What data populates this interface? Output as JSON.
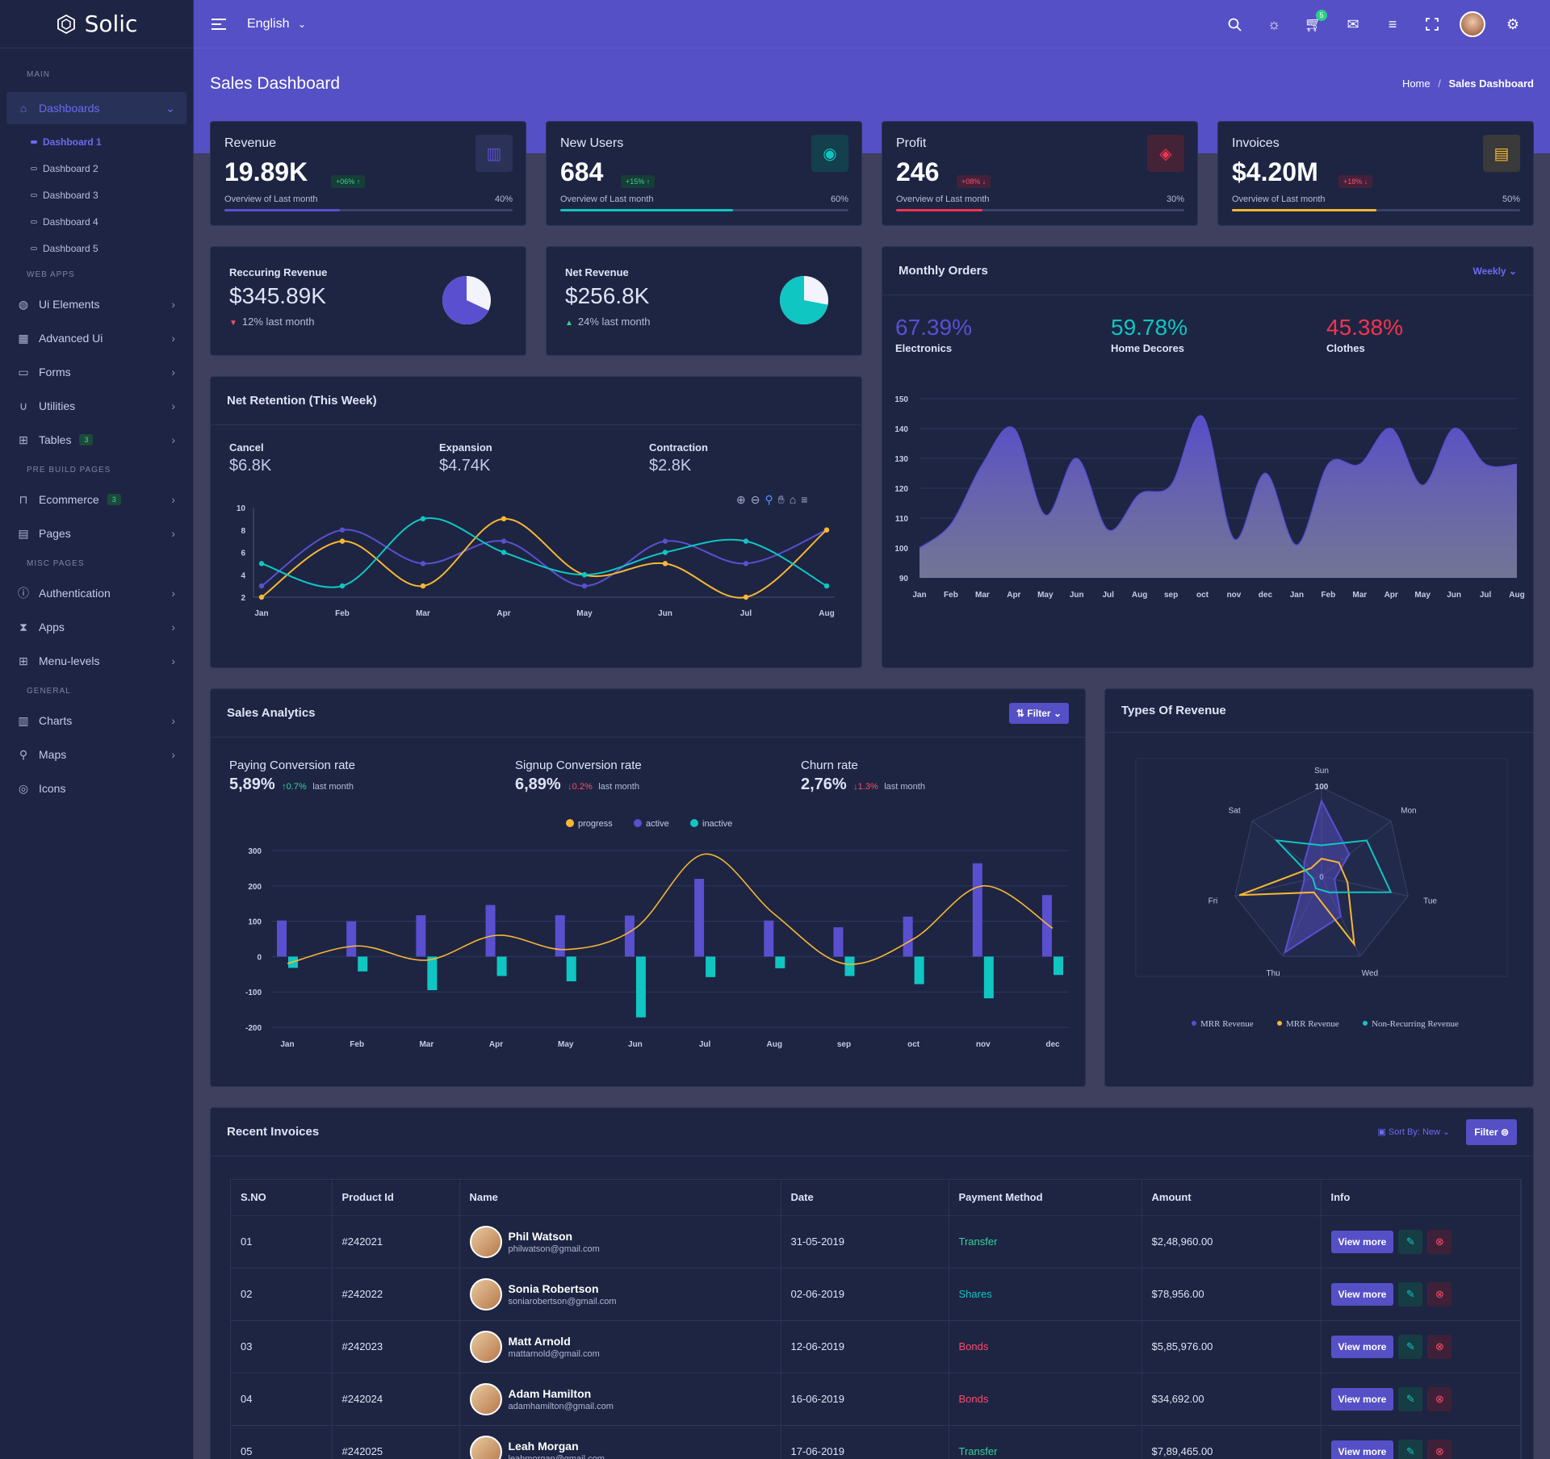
{
  "app": {
    "name": "Solic"
  },
  "sidebar": {
    "sections": {
      "main": "MAIN",
      "web_apps": "WEB APPS",
      "pre_build": "PRE BUILD PAGES",
      "misc": "MISC PAGES",
      "general": "GENERAL"
    },
    "dashboards": {
      "label": "Dashboards",
      "subs": [
        "Dashboard 1",
        "Dashboard 2",
        "Dashboard 3",
        "Dashboard 4",
        "Dashboard 5"
      ]
    },
    "items": {
      "ui_elements": "Ui Elements",
      "advanced_ui": "Advanced Ui",
      "forms": "Forms",
      "utilities": "Utilities",
      "tables": "Tables",
      "tables_badge": "3",
      "ecommerce": "Ecommerce",
      "ecommerce_badge": "3",
      "pages": "Pages",
      "authentication": "Authentication",
      "apps": "Apps",
      "menu_levels": "Menu-levels",
      "charts": "Charts",
      "maps": "Maps",
      "icons": "Icons"
    }
  },
  "topbar": {
    "language": "English",
    "cart_count": "5"
  },
  "page": {
    "title": "Sales Dashboard",
    "breadcrumb_home": "Home",
    "breadcrumb_sep": "/",
    "breadcrumb_current": "Sales Dashboard"
  },
  "stats": [
    {
      "title": "Revenue",
      "value": "19.89K",
      "badge": "+06% ↑",
      "sub": "Overview of Last month",
      "pct": "40%",
      "progress": 0.4,
      "color": "#5a4fcf",
      "icon": "chart-icon"
    },
    {
      "title": "New Users",
      "value": "684",
      "badge": "+15% ↑",
      "sub": "Overview of Last month",
      "pct": "60%",
      "progress": 0.6,
      "color": "#0fc6c2",
      "icon": "user-icon"
    },
    {
      "title": "Profit",
      "value": "246",
      "badge": "+08% ↓",
      "sub": "Overview of Last month",
      "pct": "30%",
      "progress": 0.3,
      "color": "#f5334f",
      "icon": "box-icon"
    },
    {
      "title": "Invoices",
      "value": "$4.20M",
      "badge": "+18% ↓",
      "sub": "Overview of Last month",
      "pct": "50%",
      "progress": 0.5,
      "color": "#f7b731",
      "icon": "document-icon"
    }
  ],
  "recurring": {
    "title": "Reccuring Revenue",
    "value": "$345.89K",
    "note": "12% last month",
    "slice": 0.68
  },
  "net_revenue": {
    "title": "Net Revenue",
    "value": "$256.8K",
    "note": "24% last month",
    "slice": 0.72
  },
  "net_retention": {
    "title": "Net Retention (This Week)",
    "metrics": [
      {
        "label": "Cancel",
        "value": "$6.8K"
      },
      {
        "label": "Expansion",
        "value": "$4.74K"
      },
      {
        "label": "Contraction",
        "value": "$2.8K"
      }
    ]
  },
  "monthly_orders": {
    "title": "Monthly Orders",
    "dropdown": "Weekly",
    "metrics": [
      {
        "value": "67.39%",
        "label": "Electronics",
        "color": "#5a4fcf"
      },
      {
        "value": "59.78%",
        "label": "Home Decores",
        "color": "#0fc6c2"
      },
      {
        "value": "45.38%",
        "label": "Clothes",
        "color": "#f5334f"
      }
    ]
  },
  "sales_analytics": {
    "title": "Sales Analytics",
    "filter": "Filter",
    "metrics": [
      {
        "label": "Paying Conversion rate",
        "value": "5,89%",
        "delta": "↑0.7%",
        "dir": "up",
        "note": "last month"
      },
      {
        "label": "Signup Conversion rate",
        "value": "6,89%",
        "delta": "↓0.2%",
        "dir": "down",
        "note": "last month"
      },
      {
        "label": "Churn rate",
        "value": "2,76%",
        "delta": "↓1.3%",
        "dir": "down",
        "note": "last month"
      }
    ]
  },
  "types_revenue": {
    "title": "Types Of Revenue"
  },
  "invoices": {
    "title": "Recent Invoices",
    "sort": "Sort By: New",
    "filter": "Filter",
    "columns": [
      "S.NO",
      "Product Id",
      "Name",
      "Date",
      "Payment Method",
      "Amount",
      "Info"
    ],
    "view_label": "View more",
    "rows": [
      {
        "sno": "01",
        "pid": "#242021",
        "name": "Phil Watson",
        "email": "philwatson@gmail.com",
        "date": "31-05-2019",
        "method": "Transfer",
        "method_color": "#35d399",
        "amount": "$2,48,960.00"
      },
      {
        "sno": "02",
        "pid": "#242022",
        "name": "Sonia Robertson",
        "email": "soniarobertson@gmail.com",
        "date": "02-06-2019",
        "method": "Shares",
        "method_color": "#0fc6c2",
        "amount": "$78,956.00"
      },
      {
        "sno": "03",
        "pid": "#242023",
        "name": "Matt Arnold",
        "email": "mattarnold@gmail.com",
        "date": "12-06-2019",
        "method": "Bonds",
        "method_color": "#ff4b6a",
        "amount": "$5,85,976.00"
      },
      {
        "sno": "04",
        "pid": "#242024",
        "name": "Adam Hamilton",
        "email": "adamhamilton@gmail.com",
        "date": "16-06-2019",
        "method": "Bonds",
        "method_color": "#ff4b6a",
        "amount": "$34,692.00"
      },
      {
        "sno": "05",
        "pid": "#242025",
        "name": "Leah Morgan",
        "email": "leahmorgan@gmail.com",
        "date": "17-06-2019",
        "method": "Transfer",
        "method_color": "#35d399",
        "amount": "$7,89,465.00"
      }
    ]
  },
  "chart_data": [
    {
      "type": "line",
      "chart": "net-retention",
      "categories": [
        "Jan",
        "Feb",
        "Mar",
        "Apr",
        "May",
        "Jun",
        "Jul",
        "Aug"
      ],
      "ylim": [
        2,
        10
      ],
      "yticks": [
        2,
        4,
        6,
        8,
        10
      ],
      "series": [
        {
          "color": "#5a4fcf",
          "values": [
            3,
            8,
            5,
            7,
            3,
            7,
            5,
            8
          ]
        },
        {
          "color": "#f7b731",
          "values": [
            2,
            7,
            3,
            9,
            4,
            5,
            2,
            8
          ]
        },
        {
          "color": "#0fc6c2",
          "values": [
            5,
            3,
            9,
            6,
            4,
            6,
            7,
            3
          ]
        }
      ]
    },
    {
      "type": "area",
      "chart": "monthly-orders",
      "categories": [
        "Jan",
        "Feb",
        "Mar",
        "Apr",
        "May",
        "Jun",
        "Jul",
        "Aug",
        "sep",
        "oct",
        "nov",
        "dec",
        "Jan",
        "Feb",
        "Mar",
        "Apr",
        "May",
        "Jun",
        "Jul",
        "Aug"
      ],
      "ylim": [
        90,
        150
      ],
      "yticks": [
        90,
        100,
        110,
        120,
        130,
        140,
        150
      ],
      "values": [
        100,
        108,
        128,
        140,
        111,
        130,
        106,
        118,
        121,
        144,
        103,
        125,
        101,
        128,
        128,
        140,
        121,
        140,
        128,
        128
      ],
      "color": "#5a4fcf"
    },
    {
      "type": "bar",
      "chart": "sales-analytics",
      "categories": [
        "Jan",
        "Feb",
        "Mar",
        "Apr",
        "May",
        "Jun",
        "Jul",
        "Aug",
        "sep",
        "oct",
        "nov",
        "dec"
      ],
      "ylim": [
        -200,
        300
      ],
      "yticks": [
        -200,
        -100,
        0,
        100,
        200,
        300
      ],
      "legend": [
        "progress",
        "active",
        "inactive"
      ],
      "series": [
        {
          "name": "active",
          "color": "#5a4fcf",
          "values": [
            102,
            100,
            117,
            146,
            117,
            116,
            220,
            102,
            83,
            113,
            264,
            174
          ]
        },
        {
          "name": "inactive",
          "color": "#0fc6c2",
          "values": [
            -32,
            -42,
            -95,
            -55,
            -70,
            -172,
            -58,
            -33,
            -55,
            -78,
            -118,
            -52
          ]
        },
        {
          "name": "progress",
          "color": "#f7b731",
          "values": [
            -20,
            30,
            -10,
            60,
            20,
            80,
            290,
            120,
            -20,
            50,
            200,
            80
          ]
        }
      ]
    },
    {
      "type": "radar",
      "chart": "types-of-revenue",
      "categories": [
        "Sun",
        "Mon",
        "Tue",
        "Wed",
        "Thu",
        "Fri",
        "Sat"
      ],
      "rmax": 100,
      "ticks": [
        0,
        100
      ],
      "legend": [
        "MRR Revenue",
        "MRR Revenue",
        "Non-Recurring Revenue"
      ],
      "series": [
        {
          "name": "MRR Revenue",
          "color": "#5a4fcf",
          "values": [
            85,
            40,
            15,
            50,
            95,
            20,
            25
          ]
        },
        {
          "name": "MRR Revenue",
          "color": "#f7b731",
          "values": [
            20,
            25,
            30,
            85,
            20,
            95,
            15
          ]
        },
        {
          "name": "Non-Recurring Revenue",
          "color": "#0fc6c2",
          "values": [
            35,
            65,
            80,
            20,
            15,
            10,
            65
          ]
        }
      ]
    }
  ]
}
